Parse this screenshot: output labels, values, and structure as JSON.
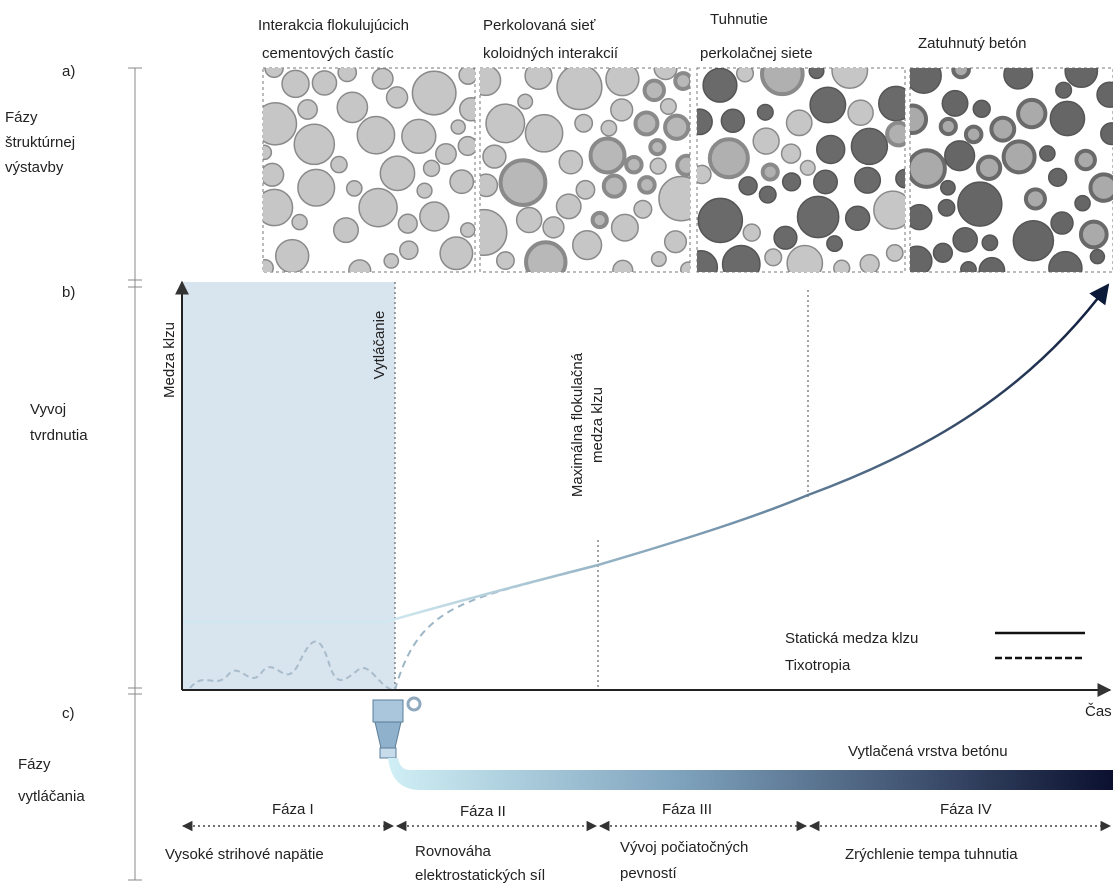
{
  "left_labels": {
    "a": "a)",
    "b": "b)",
    "c": "c)",
    "structure": [
      "Fázy",
      "štruktúrnej",
      "výstavby"
    ],
    "hardening": [
      "Vyvoj",
      "tvrdnutia"
    ],
    "extrusion": [
      "Fázy",
      "vytláčania"
    ]
  },
  "stages": [
    {
      "title": [
        "Interakcia flokulujúcich",
        "cementových častíc"
      ]
    },
    {
      "title": [
        "Perkolovaná sieť",
        "koloidných interakcií"
      ]
    },
    {
      "title": [
        "Tuhnutie",
        "perkolačnej siete"
      ]
    },
    {
      "title": [
        "Zatuhnutý betón"
      ]
    }
  ],
  "chart": {
    "y_axis": "Medza klzu",
    "x_axis": "Čas",
    "markers": {
      "extrusion": "Vytláčanie",
      "max_flocculation": [
        "Maximálna flokulačná",
        "medza klzu"
      ]
    },
    "legend": {
      "static": "Statická medza klzu",
      "thixotropy": "Tixotropia"
    }
  },
  "layer_label": "Vytlačená vrstva betónu",
  "phases": [
    {
      "name": "Fáza I",
      "description": [
        "Vysoké strihové napätie"
      ]
    },
    {
      "name": "Fáza II",
      "description": [
        "Rovnováha",
        "elektrostatických síl"
      ]
    },
    {
      "name": "Fáza III",
      "description": [
        "Vývoj počiatočných",
        "pevností"
      ]
    },
    {
      "name": "Fáza IV",
      "description": [
        "Zrýchlenie tempa tuhnutia"
      ]
    }
  ]
}
